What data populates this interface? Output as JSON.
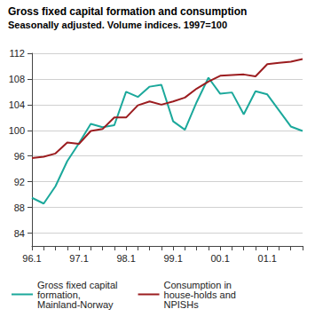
{
  "chart_data": {
    "type": "line",
    "title": "Gross fixed capital formation and consumption",
    "subtitle": "Seasonally adjusted. Volume indices. 1997=100",
    "categories": [
      "96.1",
      null,
      null,
      null,
      "97.1",
      null,
      null,
      null,
      "98.1",
      null,
      null,
      null,
      "99.1",
      null,
      null,
      null,
      "00.1",
      null,
      null,
      null,
      "01.1",
      null,
      null,
      null
    ],
    "series": [
      {
        "name": "Gross fixed capital formation, Mainland-Norway",
        "color": "#1ba89b",
        "values": [
          89.5,
          88.6,
          91.3,
          95.2,
          98.0,
          101.0,
          100.5,
          100.8,
          106.0,
          105.2,
          106.8,
          107.1,
          101.4,
          100.1,
          104.4,
          108.2,
          105.7,
          105.9,
          102.5,
          106.1,
          105.6,
          103.1,
          100.6,
          99.9
        ]
      },
      {
        "name": "Consumption in house-holds and NPISHs",
        "color": "#9b1c1f",
        "values": [
          95.7,
          95.9,
          96.4,
          98.1,
          97.9,
          99.9,
          100.2,
          102.0,
          102.0,
          103.9,
          104.5,
          104.0,
          104.5,
          105.1,
          106.5,
          107.6,
          108.5,
          108.6,
          108.7,
          108.4,
          110.3,
          110.5,
          110.7,
          111.1
        ]
      }
    ],
    "ylim": [
      82,
      112
    ],
    "yticks": [
      84,
      88,
      92,
      96,
      100,
      104,
      108,
      112
    ],
    "grid": true,
    "legend": "bottom"
  }
}
